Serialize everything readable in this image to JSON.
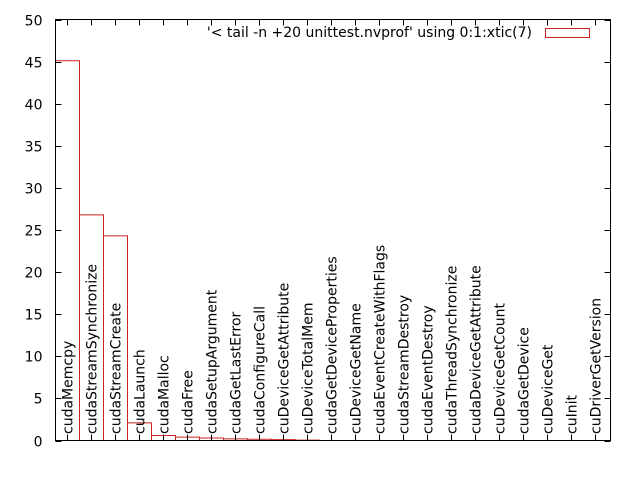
{
  "chart_data": {
    "type": "bar",
    "legend_position": "top-right",
    "ylim": [
      0,
      50
    ],
    "yticks": [
      0,
      5,
      10,
      15,
      20,
      25,
      30,
      35,
      40,
      45,
      50
    ],
    "grid": false,
    "bar_color": "#cc2222",
    "series": [
      {
        "name": "'< tail -n +20 unittest.nvprof' using 0:1:xtic(7)",
        "values": [
          45.1,
          26.8,
          24.3,
          2.1,
          0.6,
          0.4,
          0.3,
          0.2,
          0.15,
          0.1,
          0.05,
          0,
          0,
          0,
          0,
          0,
          0,
          0,
          0,
          0,
          0,
          0,
          0
        ]
      }
    ],
    "categories": [
      "cudaMemcpy",
      "cudaStreamSynchronize",
      "cudaStreamCreate",
      "cudaLaunch",
      "cudaMalloc",
      "cudaFree",
      "cudaSetupArgument",
      "cudaGetLastError",
      "cudaConfigureCall",
      "cuDeviceGetAttribute",
      "cuDeviceTotalMem",
      "cudaGetDeviceProperties",
      "cuDeviceGetName",
      "cudaEventCreateWithFlags",
      "cudaStreamDestroy",
      "cudaEventDestroy",
      "cudaThreadSynchronize",
      "cudaDeviceGetAttribute",
      "cuDeviceGetCount",
      "cudaGetDevice",
      "cuDeviceGet",
      "cuInit",
      "cuDriverGetVersion"
    ]
  }
}
